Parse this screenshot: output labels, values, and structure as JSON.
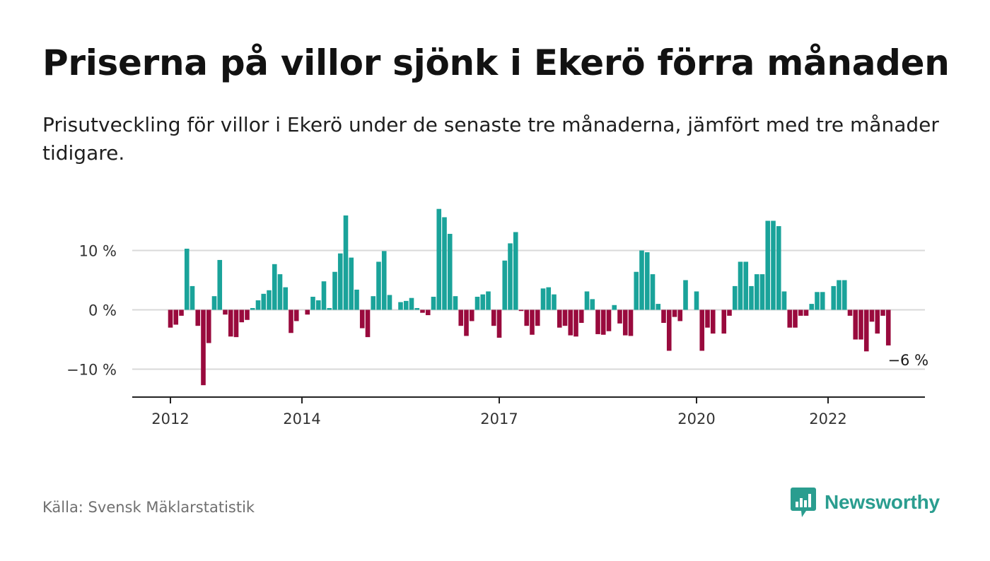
{
  "header": {
    "title": "Priserna på villor sjönk i Ekerö förra månaden",
    "subtitle": "Prisutveckling för villor i Ekerö under de senaste tre månaderna, jämfört med tre månader tidigare."
  },
  "footer": {
    "source": "Källa: Svensk Mäklarstatistik",
    "brand": "Newsworthy"
  },
  "colors": {
    "positive": "#1aa39a",
    "negative": "#990a3d",
    "grid": "#d9d9d9",
    "axis": "#222222",
    "brand": "#2a9d8f"
  },
  "chart_data": {
    "type": "bar",
    "x_start": "2012-01",
    "x_end": "2023-05",
    "ylim": [
      -15,
      18
    ],
    "y_ticks": [
      {
        "value": 10,
        "label": "10 %"
      },
      {
        "value": 0,
        "label": "0 %"
      },
      {
        "value": -10,
        "label": "−10 %"
      }
    ],
    "x_ticks": [
      {
        "date": "2012-01",
        "label": "2012"
      },
      {
        "date": "2014-01",
        "label": "2014"
      },
      {
        "date": "2017-01",
        "label": "2017"
      },
      {
        "date": "2020-01",
        "label": "2020"
      },
      {
        "date": "2022-01",
        "label": "2022"
      }
    ],
    "annotation": {
      "date": "2023-05",
      "label": "−6 %"
    },
    "series": [
      {
        "values": [
          {
            "date": "2012-01",
            "value": -3
          },
          {
            "date": "2012-02",
            "value": -2.5
          },
          {
            "date": "2012-03",
            "value": -1
          },
          {
            "date": "2012-04",
            "value": 10.3
          },
          {
            "date": "2012-05",
            "value": 4
          },
          {
            "date": "2012-06",
            "value": -2.7
          },
          {
            "date": "2012-07",
            "value": -12.7
          },
          {
            "date": "2012-08",
            "value": -5.6
          },
          {
            "date": "2012-09",
            "value": 2.3
          },
          {
            "date": "2012-10",
            "value": 8.4
          },
          {
            "date": "2012-11",
            "value": -0.8
          },
          {
            "date": "2012-12",
            "value": -4.5
          },
          {
            "date": "2013-01",
            "value": -4.6
          },
          {
            "date": "2013-02",
            "value": -2.1
          },
          {
            "date": "2013-03",
            "value": -1.7
          },
          {
            "date": "2013-04",
            "value": 0.3
          },
          {
            "date": "2013-05",
            "value": 1.6
          },
          {
            "date": "2013-06",
            "value": 2.7
          },
          {
            "date": "2013-07",
            "value": 3.3
          },
          {
            "date": "2013-08",
            "value": 7.7
          },
          {
            "date": "2013-09",
            "value": 6
          },
          {
            "date": "2013-10",
            "value": 3.8
          },
          {
            "date": "2013-11",
            "value": -3.9
          },
          {
            "date": "2013-12",
            "value": -1.9
          },
          {
            "date": "2014-01",
            "value": 0
          },
          {
            "date": "2014-02",
            "value": -0.8
          },
          {
            "date": "2014-03",
            "value": 2.2
          },
          {
            "date": "2014-04",
            "value": 1.6
          },
          {
            "date": "2014-05",
            "value": 4.8
          },
          {
            "date": "2014-06",
            "value": 0.3
          },
          {
            "date": "2014-07",
            "value": 6.4
          },
          {
            "date": "2014-08",
            "value": 9.5
          },
          {
            "date": "2014-09",
            "value": 15.9
          },
          {
            "date": "2014-10",
            "value": 8.8
          },
          {
            "date": "2014-11",
            "value": 3.4
          },
          {
            "date": "2014-12",
            "value": -3.1
          },
          {
            "date": "2015-01",
            "value": -4.6
          },
          {
            "date": "2015-02",
            "value": 2.3
          },
          {
            "date": "2015-03",
            "value": 8.1
          },
          {
            "date": "2015-04",
            "value": 9.9
          },
          {
            "date": "2015-05",
            "value": 2.5
          },
          {
            "date": "2015-06",
            "value": 0
          },
          {
            "date": "2015-07",
            "value": 1.3
          },
          {
            "date": "2015-08",
            "value": 1.5
          },
          {
            "date": "2015-09",
            "value": 2
          },
          {
            "date": "2015-10",
            "value": 0.3
          },
          {
            "date": "2015-11",
            "value": -0.5
          },
          {
            "date": "2015-12",
            "value": -0.9
          },
          {
            "date": "2016-01",
            "value": 2.2
          },
          {
            "date": "2016-02",
            "value": 17
          },
          {
            "date": "2016-03",
            "value": 15.6
          },
          {
            "date": "2016-04",
            "value": 12.8
          },
          {
            "date": "2016-05",
            "value": 2.3
          },
          {
            "date": "2016-06",
            "value": -2.7
          },
          {
            "date": "2016-07",
            "value": -4.4
          },
          {
            "date": "2016-08",
            "value": -1.9
          },
          {
            "date": "2016-09",
            "value": 2.2
          },
          {
            "date": "2016-10",
            "value": 2.6
          },
          {
            "date": "2016-11",
            "value": 3.1
          },
          {
            "date": "2016-12",
            "value": -2.7
          },
          {
            "date": "2017-01",
            "value": -4.7
          },
          {
            "date": "2017-02",
            "value": 8.3
          },
          {
            "date": "2017-03",
            "value": 11.2
          },
          {
            "date": "2017-04",
            "value": 13.1
          },
          {
            "date": "2017-05",
            "value": -0.2
          },
          {
            "date": "2017-06",
            "value": -2.7
          },
          {
            "date": "2017-07",
            "value": -4.2
          },
          {
            "date": "2017-08",
            "value": -2.7
          },
          {
            "date": "2017-09",
            "value": 3.6
          },
          {
            "date": "2017-10",
            "value": 3.8
          },
          {
            "date": "2017-11",
            "value": 2.6
          },
          {
            "date": "2017-12",
            "value": -3
          },
          {
            "date": "2018-01",
            "value": -2.7
          },
          {
            "date": "2018-02",
            "value": -4.3
          },
          {
            "date": "2018-03",
            "value": -4.5
          },
          {
            "date": "2018-04",
            "value": -2.2
          },
          {
            "date": "2018-05",
            "value": 3.1
          },
          {
            "date": "2018-06",
            "value": 1.8
          },
          {
            "date": "2018-07",
            "value": -4.1
          },
          {
            "date": "2018-08",
            "value": -4.2
          },
          {
            "date": "2018-09",
            "value": -3.6
          },
          {
            "date": "2018-10",
            "value": 0.8
          },
          {
            "date": "2018-11",
            "value": -2.3
          },
          {
            "date": "2018-12",
            "value": -4.3
          },
          {
            "date": "2019-01",
            "value": -4.4
          },
          {
            "date": "2019-02",
            "value": 6.4
          },
          {
            "date": "2019-03",
            "value": 10
          },
          {
            "date": "2019-04",
            "value": 9.7
          },
          {
            "date": "2019-05",
            "value": 6
          },
          {
            "date": "2019-06",
            "value": 1
          },
          {
            "date": "2019-07",
            "value": -2.2
          },
          {
            "date": "2019-08",
            "value": -6.9
          },
          {
            "date": "2019-09",
            "value": -1.2
          },
          {
            "date": "2019-10",
            "value": -1.9
          },
          {
            "date": "2019-11",
            "value": 5
          },
          {
            "date": "2019-12",
            "value": 0
          },
          {
            "date": "2020-01",
            "value": 3.1
          },
          {
            "date": "2020-02",
            "value": -6.9
          },
          {
            "date": "2020-03",
            "value": -3
          },
          {
            "date": "2020-04",
            "value": -4
          },
          {
            "date": "2020-05",
            "value": 0
          },
          {
            "date": "2020-06",
            "value": -4
          },
          {
            "date": "2020-07",
            "value": -1
          },
          {
            "date": "2020-08",
            "value": 4
          },
          {
            "date": "2020-09",
            "value": 8.1
          },
          {
            "date": "2020-10",
            "value": 8.1
          },
          {
            "date": "2020-11",
            "value": 4
          },
          {
            "date": "2020-12",
            "value": 6
          },
          {
            "date": "2021-01",
            "value": 6
          },
          {
            "date": "2021-02",
            "value": 15
          },
          {
            "date": "2021-03",
            "value": 15
          },
          {
            "date": "2021-04",
            "value": 14.1
          },
          {
            "date": "2021-05",
            "value": 3.1
          },
          {
            "date": "2021-06",
            "value": -3
          },
          {
            "date": "2021-07",
            "value": -3
          },
          {
            "date": "2021-08",
            "value": -1
          },
          {
            "date": "2021-09",
            "value": -1
          },
          {
            "date": "2021-10",
            "value": 1
          },
          {
            "date": "2021-11",
            "value": 3
          },
          {
            "date": "2021-12",
            "value": 3
          },
          {
            "date": "2022-01",
            "value": 0
          },
          {
            "date": "2022-02",
            "value": 4
          },
          {
            "date": "2022-03",
            "value": 5
          },
          {
            "date": "2022-04",
            "value": 5
          },
          {
            "date": "2022-05",
            "value": -1
          },
          {
            "date": "2022-06",
            "value": -5
          },
          {
            "date": "2022-07",
            "value": -5
          },
          {
            "date": "2022-08",
            "value": -7
          },
          {
            "date": "2022-09",
            "value": -2
          },
          {
            "date": "2022-10",
            "value": -4
          },
          {
            "date": "2022-11",
            "value": -1
          },
          {
            "date": "2022-12",
            "value": -6
          }
        ]
      }
    ]
  }
}
